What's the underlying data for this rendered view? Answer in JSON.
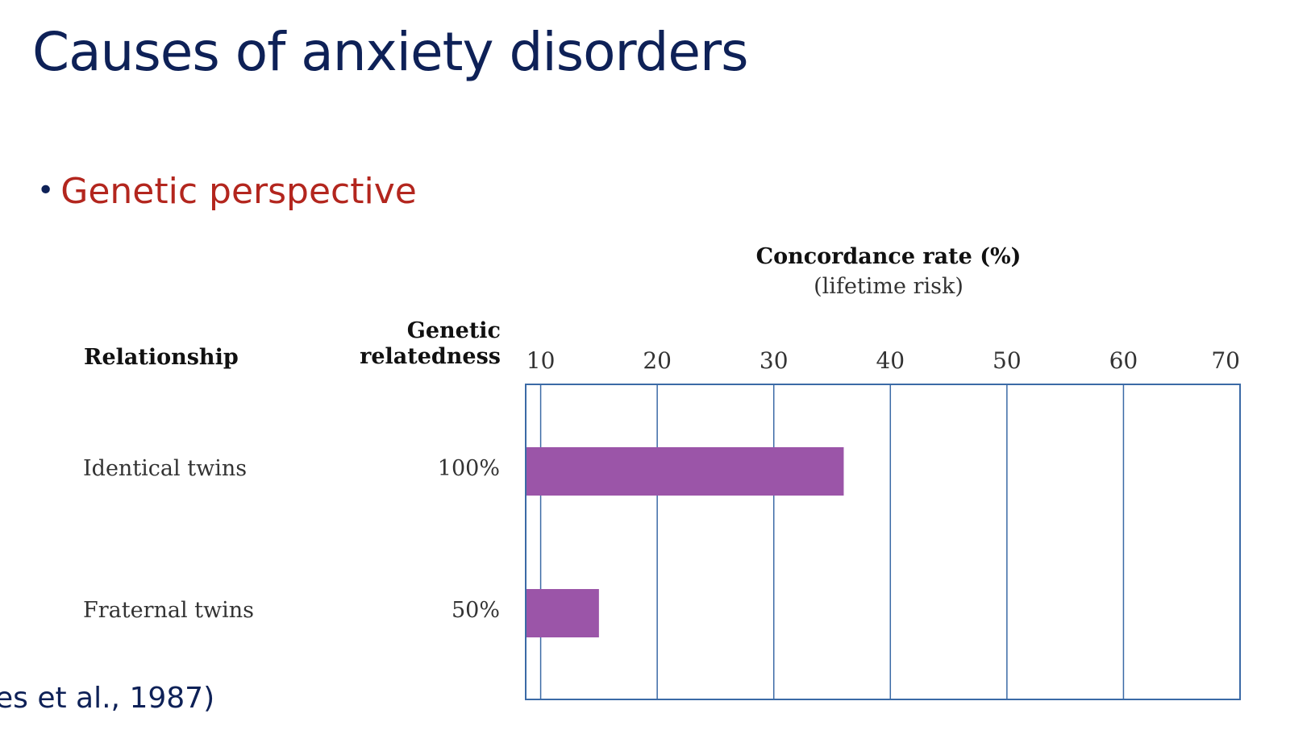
{
  "slide": {
    "title": "Causes of anxiety disorders",
    "bullet": "Genetic perspective",
    "citation": "es et al., 1987)"
  },
  "colors": {
    "title": "#0e2157",
    "bullet": "#b3261e",
    "bar": "#9b55a8",
    "grid": "#3b6aa6"
  },
  "chart_data": {
    "type": "bar",
    "orientation": "horizontal",
    "title": "Concordance rate (%)",
    "subtitle": "(lifetime risk)",
    "column_headers": {
      "relationship": "Relationship",
      "genetic_line1": "Genetic",
      "genetic_line2": "relatedness"
    },
    "categories": [
      "Identical twins",
      "Fraternal twins"
    ],
    "relatedness": [
      "100%",
      "50%"
    ],
    "values": [
      36,
      15
    ],
    "xlim": [
      0,
      70
    ],
    "xticks": [
      10,
      20,
      30,
      40,
      50,
      60,
      70
    ],
    "grid": true
  }
}
